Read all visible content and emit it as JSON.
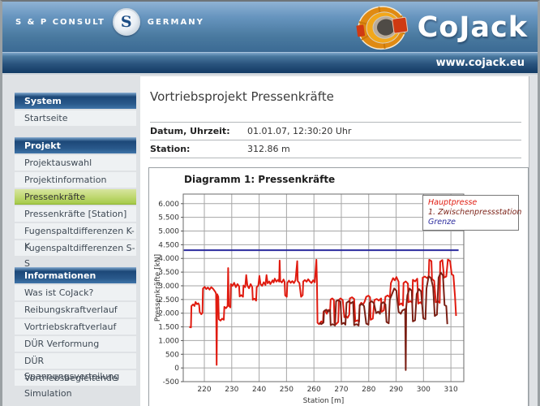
{
  "header": {
    "brand_left_name": "S & P CONSULT",
    "brand_left_logo_letter": "S",
    "brand_left_country": "GERMANY",
    "brand_right_title": "CoJack",
    "url": "www.cojack.eu",
    "colors": {
      "header_blue": "#49799f",
      "bar_navy": "#123a64",
      "tunnel_orange": "#e08a12",
      "tunnel_red": "#cf3a12"
    }
  },
  "sidebar": {
    "sections": [
      {
        "label": "System",
        "items": [
          {
            "label": "Startseite",
            "active": false
          }
        ]
      },
      {
        "label": "Projekt",
        "items": [
          {
            "label": "Projektauswahl",
            "active": false
          },
          {
            "label": "Projektinformation",
            "active": false
          },
          {
            "label": "Pressenkräfte",
            "active": true
          },
          {
            "label": "Pressenkräfte [Station]",
            "active": false
          },
          {
            "label": "Fugenspaltdifferenzen K-K",
            "active": false
          },
          {
            "label": "Fugenspaltdifferenzen S-S",
            "active": false
          }
        ]
      },
      {
        "label": "Informationen",
        "items": [
          {
            "label": "Was ist CoJack?",
            "active": false
          },
          {
            "label": "Reibungskraftverlauf",
            "active": false
          },
          {
            "label": "Vortriebskraftverlauf",
            "active": false
          },
          {
            "label": "DÜR Verformung",
            "active": false
          },
          {
            "label": "DÜR Spannungsverteilung",
            "active": false
          },
          {
            "label": "Vortriebsbegleitende Simulation",
            "active": false
          }
        ]
      }
    ],
    "active_color": "#a5ca4a"
  },
  "main": {
    "page_title": "Vortriebsprojekt Pressenkräfte",
    "info_rows": [
      {
        "label": "Datum, Uhrzeit:",
        "value": "01.01.07, 12:30:20 Uhr"
      },
      {
        "label": "Station:",
        "value": "312.86 m"
      }
    ]
  },
  "chart_data": {
    "type": "line",
    "title": "Diagramm 1: Pressenkräfte",
    "xlabel": "Station [m]",
    "ylabel": "Pressenkräfte [kN]",
    "xlim": [
      212.3,
      314.7
    ],
    "ylim": [
      -500,
      6350
    ],
    "xticks": [
      220,
      230,
      240,
      250,
      260,
      270,
      280,
      290,
      300,
      310
    ],
    "yticks": [
      -500,
      0,
      500,
      1000,
      1500,
      2000,
      2500,
      3000,
      3500,
      4000,
      4500,
      5000,
      5500,
      6000
    ],
    "ytick_labels": [
      "-500",
      "0",
      "500",
      "1.000",
      "1.500",
      "2.000",
      "2.500",
      "3.000",
      "3.500",
      "4.000",
      "4.500",
      "5.000",
      "5.500",
      "6.000"
    ],
    "grid": true,
    "grid_color": "#a6a6a6",
    "legend": {
      "position": "top-right",
      "entries": [
        {
          "label": "Hauptpresse",
          "color": "#e01b10"
        },
        {
          "label": "1. Zwischenpressstation",
          "color": "#7a1f14"
        },
        {
          "label": "Grenze",
          "color": "#2b2b9e"
        }
      ]
    },
    "series": [
      {
        "name": "Hauptpresse",
        "color": "#e01b10",
        "width": 2,
        "points": [
          [
            214.5,
            1500
          ],
          [
            215.1,
            1480
          ],
          [
            215.3,
            2260
          ],
          [
            215.9,
            2320
          ],
          [
            216.4,
            2260
          ],
          [
            216.8,
            2410
          ],
          [
            217.3,
            2330
          ],
          [
            217.8,
            2360
          ],
          [
            218.1,
            2300
          ],
          [
            218.3,
            2040
          ],
          [
            218.9,
            1960
          ],
          [
            219.3,
            2010
          ],
          [
            219.5,
            2900
          ],
          [
            220.1,
            2960
          ],
          [
            220.7,
            2880
          ],
          [
            221.3,
            2940
          ],
          [
            221.9,
            2860
          ],
          [
            222.5,
            2950
          ],
          [
            223.1,
            2900
          ],
          [
            223.7,
            2820
          ],
          [
            224.1,
            2760
          ],
          [
            224.3,
            2700
          ],
          [
            224.5,
            110
          ],
          [
            224.7,
            2690
          ],
          [
            225.1,
            2600
          ],
          [
            225.3,
            1780
          ],
          [
            225.9,
            1730
          ],
          [
            226.5,
            1800
          ],
          [
            227.1,
            1760
          ],
          [
            227.3,
            2230
          ],
          [
            227.9,
            2180
          ],
          [
            228.5,
            2260
          ],
          [
            228.7,
            3650
          ],
          [
            228.9,
            2280
          ],
          [
            229.5,
            2210
          ],
          [
            229.7,
            3060
          ],
          [
            230.3,
            3000
          ],
          [
            230.9,
            3110
          ],
          [
            231.5,
            2950
          ],
          [
            232.1,
            3060
          ],
          [
            232.7,
            2980
          ],
          [
            232.9,
            2610
          ],
          [
            233.5,
            2660
          ],
          [
            234.1,
            2600
          ],
          [
            234.3,
            3010
          ],
          [
            234.9,
            2950
          ],
          [
            235.3,
            3390
          ],
          [
            235.7,
            3010
          ],
          [
            236.3,
            2910
          ],
          [
            236.9,
            3060
          ],
          [
            237.5,
            2950
          ],
          [
            237.7,
            2490
          ],
          [
            238.3,
            2530
          ],
          [
            238.9,
            2460
          ],
          [
            239.1,
            2950
          ],
          [
            239.7,
            3010
          ],
          [
            240.1,
            3360
          ],
          [
            240.5,
            3060
          ],
          [
            241.1,
            3000
          ],
          [
            241.7,
            3130
          ],
          [
            242.3,
            3030
          ],
          [
            242.7,
            3390
          ],
          [
            243.1,
            3090
          ],
          [
            243.7,
            3160
          ],
          [
            244.1,
            3060
          ],
          [
            244.5,
            3130
          ],
          [
            244.9,
            3200
          ],
          [
            245.3,
            3120
          ],
          [
            245.7,
            3260
          ],
          [
            246.3,
            3150
          ],
          [
            246.9,
            3220
          ],
          [
            247.3,
            3150
          ],
          [
            247.5,
            3920
          ],
          [
            247.7,
            3180
          ],
          [
            248.3,
            3120
          ],
          [
            248.9,
            3230
          ],
          [
            249.3,
            3140
          ],
          [
            249.5,
            2650
          ],
          [
            250.1,
            2600
          ],
          [
            250.3,
            3110
          ],
          [
            250.9,
            3190
          ],
          [
            251.5,
            3110
          ],
          [
            252.1,
            3170
          ],
          [
            252.7,
            3100
          ],
          [
            253.3,
            3210
          ],
          [
            253.9,
            3900
          ],
          [
            254.1,
            3170
          ],
          [
            254.7,
            3100
          ],
          [
            255.3,
            2600
          ],
          [
            255.9,
            2660
          ],
          [
            256.1,
            3160
          ],
          [
            256.7,
            3210
          ],
          [
            257.3,
            3150
          ],
          [
            257.9,
            3240
          ],
          [
            258.5,
            3160
          ],
          [
            259.1,
            3100
          ],
          [
            259.7,
            3200
          ],
          [
            260.3,
            3130
          ],
          [
            260.9,
            3950
          ],
          [
            261.1,
            3150
          ],
          [
            261.3,
            1650
          ],
          [
            261.9,
            1600
          ],
          [
            262.7,
            1700
          ],
          [
            263.3,
            1640
          ],
          [
            263.5,
            2050
          ],
          [
            264.1,
            2100
          ],
          [
            264.7,
            1980
          ],
          [
            265.3,
            2120
          ],
          [
            265.9,
            2060
          ],
          [
            266.1,
            2500
          ],
          [
            266.7,
            2540
          ],
          [
            267.3,
            2480
          ],
          [
            267.5,
            1650
          ],
          [
            268.1,
            1600
          ],
          [
            268.9,
            1680
          ],
          [
            269.1,
            2480
          ],
          [
            269.7,
            2540
          ],
          [
            270.5,
            2480
          ],
          [
            271.1,
            1850
          ],
          [
            271.7,
            1900
          ],
          [
            272.3,
            1830
          ],
          [
            272.9,
            1950
          ],
          [
            273.1,
            2540
          ],
          [
            273.9,
            2580
          ],
          [
            274.7,
            2520
          ],
          [
            275.1,
            1700
          ],
          [
            275.9,
            1740
          ],
          [
            276.5,
            1690
          ],
          [
            276.7,
            2300
          ],
          [
            277.3,
            2380
          ],
          [
            277.9,
            2310
          ],
          [
            278.5,
            2420
          ],
          [
            279.1,
            2600
          ],
          [
            279.9,
            2640
          ],
          [
            280.5,
            2580
          ],
          [
            280.7,
            1760
          ],
          [
            281.5,
            1800
          ],
          [
            282.1,
            2480
          ],
          [
            282.9,
            2520
          ],
          [
            283.7,
            2460
          ],
          [
            284.5,
            2540
          ],
          [
            284.7,
            2050
          ],
          [
            285.5,
            2100
          ],
          [
            286.1,
            2600
          ],
          [
            286.9,
            2650
          ],
          [
            287.7,
            2580
          ],
          [
            288.1,
            3100
          ],
          [
            288.9,
            3280
          ],
          [
            289.5,
            3200
          ],
          [
            290.1,
            3320
          ],
          [
            290.9,
            3150
          ],
          [
            291.1,
            2300
          ],
          [
            291.9,
            2360
          ],
          [
            292.5,
            2280
          ],
          [
            292.7,
            3100
          ],
          [
            293.5,
            3160
          ],
          [
            294.3,
            3080
          ],
          [
            294.5,
            2400
          ],
          [
            295.3,
            2440
          ],
          [
            295.9,
            2380
          ],
          [
            296.1,
            3220
          ],
          [
            296.9,
            3160
          ],
          [
            297.7,
            3260
          ],
          [
            298.1,
            2350
          ],
          [
            298.9,
            2400
          ],
          [
            299.5,
            2330
          ],
          [
            299.7,
            3300
          ],
          [
            300.5,
            3340
          ],
          [
            301.3,
            3280
          ],
          [
            301.9,
            3340
          ],
          [
            302.1,
            3950
          ],
          [
            302.9,
            3900
          ],
          [
            303.1,
            3250
          ],
          [
            303.9,
            3180
          ],
          [
            304.5,
            2400
          ],
          [
            305.3,
            2440
          ],
          [
            305.9,
            2380
          ],
          [
            306.1,
            3880
          ],
          [
            306.9,
            3940
          ],
          [
            307.5,
            3300
          ],
          [
            308.3,
            3340
          ],
          [
            308.9,
            3960
          ],
          [
            309.7,
            3900
          ],
          [
            310.3,
            3420
          ],
          [
            310.9,
            3380
          ],
          [
            311.5,
            2600
          ],
          [
            311.9,
            1900
          ]
        ]
      },
      {
        "name": "1. Zwischenpressstation",
        "color": "#7a1f14",
        "width": 2,
        "points": [
          [
            262.0,
            1650
          ],
          [
            262.7,
            1600
          ],
          [
            263.5,
            1660
          ],
          [
            263.7,
            2080
          ],
          [
            264.5,
            2130
          ],
          [
            265.1,
            2050
          ],
          [
            265.9,
            2120
          ],
          [
            266.1,
            1560
          ],
          [
            266.9,
            1600
          ],
          [
            267.7,
            1550
          ],
          [
            268.1,
            2440
          ],
          [
            268.9,
            2480
          ],
          [
            269.7,
            2420
          ],
          [
            270.1,
            1600
          ],
          [
            270.9,
            1650
          ],
          [
            271.5,
            1580
          ],
          [
            271.9,
            2380
          ],
          [
            272.7,
            2440
          ],
          [
            273.5,
            2360
          ],
          [
            274.3,
            2420
          ],
          [
            274.7,
            1560
          ],
          [
            275.5,
            1600
          ],
          [
            276.3,
            1550
          ],
          [
            276.7,
            2280
          ],
          [
            277.5,
            2340
          ],
          [
            278.3,
            2260
          ],
          [
            279.1,
            1620
          ],
          [
            279.9,
            1580
          ],
          [
            280.3,
            2380
          ],
          [
            281.1,
            2440
          ],
          [
            281.9,
            2360
          ],
          [
            282.7,
            2000
          ],
          [
            283.5,
            2060
          ],
          [
            284.1,
            1980
          ],
          [
            284.5,
            2340
          ],
          [
            285.3,
            2400
          ],
          [
            286.1,
            2320
          ],
          [
            286.5,
            1680
          ],
          [
            287.3,
            1630
          ],
          [
            287.7,
            2500
          ],
          [
            288.5,
            2700
          ],
          [
            289.3,
            2900
          ],
          [
            290.1,
            2820
          ],
          [
            290.9,
            2050
          ],
          [
            291.7,
            1980
          ],
          [
            292.3,
            2100
          ],
          [
            293.3,
            2150
          ],
          [
            293.5,
            -80
          ],
          [
            293.7,
            2200
          ],
          [
            294.1,
            2650
          ],
          [
            294.9,
            2900
          ],
          [
            295.7,
            2820
          ],
          [
            296.1,
            1700
          ],
          [
            296.9,
            1740
          ],
          [
            297.5,
            2700
          ],
          [
            298.3,
            2880
          ],
          [
            299.1,
            2800
          ],
          [
            299.9,
            1820
          ],
          [
            300.7,
            1780
          ],
          [
            301.1,
            2900
          ],
          [
            301.9,
            3350
          ],
          [
            302.7,
            3280
          ],
          [
            303.5,
            2950
          ],
          [
            304.1,
            1900
          ],
          [
            304.9,
            1950
          ],
          [
            305.5,
            3300
          ],
          [
            306.3,
            3480
          ],
          [
            307.1,
            3380
          ],
          [
            307.7,
            2300
          ],
          [
            308.3,
            2260
          ],
          [
            308.7,
            1600
          ]
        ]
      },
      {
        "name": "Grenze",
        "color": "#2b2b9e",
        "width": 2,
        "points": [
          [
            212.5,
            4300
          ],
          [
            312.8,
            4300
          ]
        ]
      }
    ]
  }
}
